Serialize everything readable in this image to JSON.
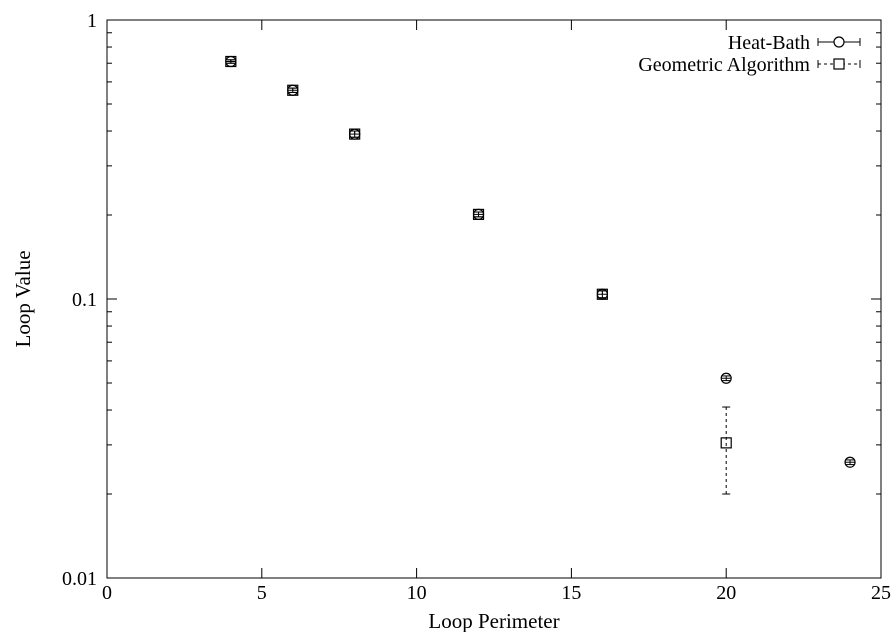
{
  "chart_data": {
    "type": "scatter",
    "title": "",
    "xlabel": "Loop Perimeter",
    "ylabel": "Loop Value",
    "xlim": [
      0,
      25
    ],
    "ylim": [
      0.01,
      1
    ],
    "y_scale": "log",
    "grid": false,
    "legend_position": "top-right",
    "x_ticks": [
      0,
      5,
      10,
      15,
      20,
      25
    ],
    "x_tick_labels": [
      "0",
      "5",
      "10",
      "15",
      "20",
      "25"
    ],
    "y_ticks": [
      0.01,
      0.1,
      1
    ],
    "y_tick_labels": [
      "0.01",
      "0.1",
      "1"
    ],
    "series": [
      {
        "name": "Heat-Bath",
        "marker": "circle",
        "line_style": "solid",
        "points": [
          {
            "x": 4,
            "y": 0.71,
            "err": 0.01
          },
          {
            "x": 6,
            "y": 0.56,
            "err": 0.01
          },
          {
            "x": 8,
            "y": 0.39,
            "err": 0.01
          },
          {
            "x": 12,
            "y": 0.201,
            "err": 0.004
          },
          {
            "x": 16,
            "y": 0.104,
            "err": 0.003
          },
          {
            "x": 20,
            "y": 0.052,
            "err": 0.001
          },
          {
            "x": 24,
            "y": 0.026,
            "err": 0.0005
          }
        ]
      },
      {
        "name": "Geometric Algorithm",
        "marker": "square",
        "line_style": "dashed",
        "points": [
          {
            "x": 4,
            "y": 0.71,
            "err": 0.01
          },
          {
            "x": 6,
            "y": 0.56,
            "err": 0.01
          },
          {
            "x": 8,
            "y": 0.39,
            "err": 0.01
          },
          {
            "x": 12,
            "y": 0.201,
            "err": 0.004
          },
          {
            "x": 16,
            "y": 0.104,
            "err": 0.003
          },
          {
            "x": 20,
            "y": 0.0305,
            "err": 0.0105
          }
        ]
      }
    ]
  }
}
